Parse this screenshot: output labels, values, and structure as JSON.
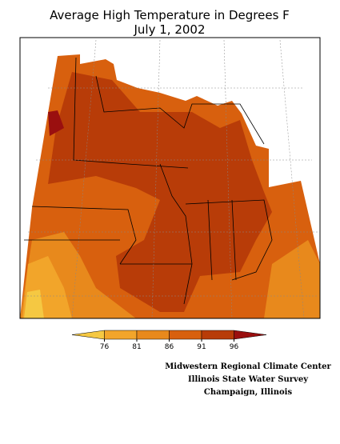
{
  "title": [
    "Average High Temperature in Degrees F",
    "July 1, 2002"
  ],
  "legend": {
    "ticks": [
      76,
      81,
      86,
      91,
      96
    ],
    "colors": [
      "#f5c842",
      "#f2a52a",
      "#e8891c",
      "#d8600e",
      "#b83c08",
      "#9a0f0f"
    ]
  },
  "credits": [
    "Midwestern Regional Climate Center",
    "Illinois State Water Survey",
    "Champaign, Illinois"
  ]
}
